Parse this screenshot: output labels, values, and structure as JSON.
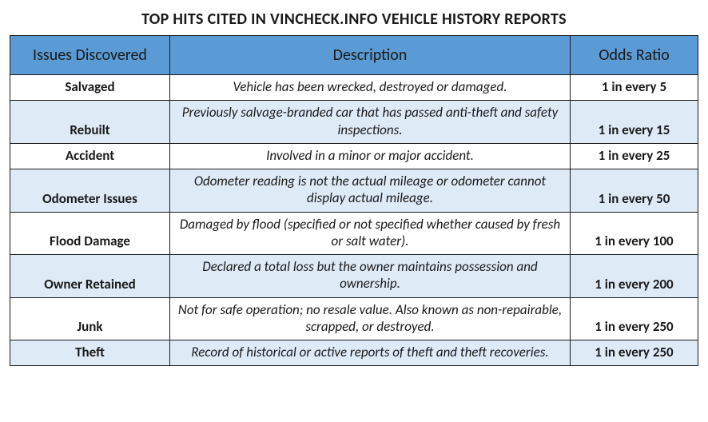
{
  "title": "TOP HITS CITED IN VINCHECK.INFO VEHICLE HISTORY REPORTS",
  "colors": {
    "header_bg": "#5b9bd5",
    "row_alt_bg": "#deebf7",
    "row_bg": "#ffffff",
    "border": "#1a1a1a",
    "text": "#1a1a1a"
  },
  "columns": [
    {
      "key": "issue",
      "label": "Issues Discovered"
    },
    {
      "key": "description",
      "label": "Description"
    },
    {
      "key": "odds",
      "label": "Odds Ratio"
    }
  ],
  "rows": [
    {
      "issue": "Salvaged",
      "description": "Vehicle has been wrecked, destroyed or damaged.",
      "odds": "1 in every 5"
    },
    {
      "issue": "Rebuilt",
      "description": "Previously salvage-branded car that has passed anti-theft and safety inspections.",
      "odds": "1 in every 15"
    },
    {
      "issue": "Accident",
      "description": "Involved in a minor or major accident.",
      "odds": "1 in every 25"
    },
    {
      "issue": "Odometer Issues",
      "description": "Odometer reading is not the actual mileage or odometer cannot display actual mileage.",
      "odds": "1 in every 50"
    },
    {
      "issue": "Flood Damage",
      "description": "Damaged by flood (specified or not specified whether caused by fresh or salt water).",
      "odds": "1 in every 100"
    },
    {
      "issue": "Owner Retained",
      "description": "Declared a total loss but the owner maintains possession and ownership.",
      "odds": "1 in every 200"
    },
    {
      "issue": "Junk",
      "description": "Not for safe operation; no resale value. Also known as non-repairable, scrapped, or destroyed.",
      "odds": "1 in every 250"
    },
    {
      "issue": "Theft",
      "description": "Record of historical or active reports of theft and theft recoveries.",
      "odds": "1 in every 250"
    }
  ]
}
